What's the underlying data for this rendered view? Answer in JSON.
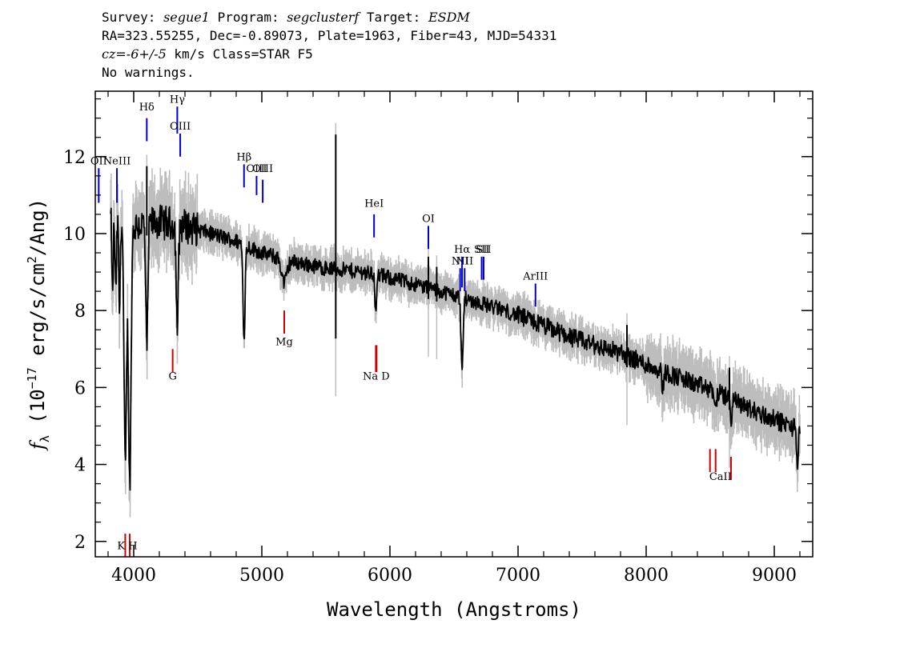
{
  "header": {
    "line1": {
      "p1": "Survey: ",
      "survey": "segue1",
      "p2": " Program: ",
      "program": "segclusterf",
      "p3": " Target: ",
      "target": "ESDM"
    },
    "line2": "RA=323.55255, Dec=-0.89073, Plate=1963, Fiber=43, MJD=54331",
    "line3": {
      "cz": "cz=-6+/-5",
      "rest": " km/s Class=STAR F5"
    },
    "line4": "No warnings."
  },
  "chart_data": {
    "type": "line",
    "xlabel": "Wavelength (Angstroms)",
    "ylabel": "f_λ (10^-17 erg/s/cm^2/Ang)",
    "ylabel_parts": {
      "f": "f",
      "sub": "λ",
      "pre": " (10",
      "sup1": "−17",
      "mid": " erg/s/cm",
      "sup2": "2",
      "post": "/Ang)"
    },
    "xlim": [
      3700,
      9300
    ],
    "ylim": [
      1.6,
      13.7
    ],
    "xticks": [
      4000,
      5000,
      6000,
      7000,
      8000,
      9000
    ],
    "yticks": [
      2,
      4,
      6,
      8,
      10,
      12
    ],
    "xtick_labels": [
      "4000",
      "5000",
      "6000",
      "7000",
      "8000",
      "9000"
    ],
    "ytick_labels": [
      "2",
      "4",
      "6",
      "8",
      "10",
      "12"
    ],
    "colors": {
      "flux": "#000000",
      "error_band": "#bdbdbd",
      "emission": "#0000cc",
      "absorption": "#cc0000"
    },
    "continuum": [
      [
        3820,
        10.4
      ],
      [
        3900,
        10.5
      ],
      [
        4000,
        10.2
      ],
      [
        4200,
        10.3
      ],
      [
        4400,
        10.2
      ],
      [
        4600,
        10.0
      ],
      [
        4800,
        9.8
      ],
      [
        5000,
        9.5
      ],
      [
        5200,
        9.3
      ],
      [
        5500,
        9.1
      ],
      [
        5800,
        9.0
      ],
      [
        6000,
        8.85
      ],
      [
        6300,
        8.6
      ],
      [
        6600,
        8.3
      ],
      [
        6900,
        8.0
      ],
      [
        7200,
        7.6
      ],
      [
        7500,
        7.2
      ],
      [
        7800,
        6.9
      ],
      [
        8000,
        6.6
      ],
      [
        8300,
        6.2
      ],
      [
        8600,
        5.8
      ],
      [
        8900,
        5.3
      ],
      [
        9200,
        4.9
      ]
    ],
    "absorption_features": [
      {
        "x": 3835,
        "depth": 2.2,
        "width": 5
      },
      {
        "x": 3860,
        "depth": 2.0,
        "width": 6
      },
      {
        "x": 3889,
        "depth": 2.5,
        "width": 6
      },
      {
        "x": 3934,
        "depth": 6.5,
        "width": 10
      },
      {
        "x": 3969,
        "depth": 6.8,
        "width": 10
      },
      {
        "x": 4102,
        "depth": 3.3,
        "width": 8
      },
      {
        "x": 4340,
        "depth": 2.7,
        "width": 8
      },
      {
        "x": 4861,
        "depth": 2.4,
        "width": 8
      },
      {
        "x": 5175,
        "depth": 0.6,
        "width": 20
      },
      {
        "x": 5890,
        "depth": 1.1,
        "width": 6
      },
      {
        "x": 6563,
        "depth": 1.9,
        "width": 8
      },
      {
        "x": 8130,
        "depth": 0.5,
        "width": 6
      },
      {
        "x": 8542,
        "depth": 0.5,
        "width": 6
      },
      {
        "x": 8662,
        "depth": 0.6,
        "width": 6
      },
      {
        "x": 9180,
        "depth": 1.0,
        "width": 6
      }
    ],
    "spikes": [
      {
        "x": 4102,
        "height": 1.5
      },
      {
        "x": 5577,
        "height": 3.5,
        "low": -1.8
      },
      {
        "x": 6300,
        "height": 0.8
      },
      {
        "x": 6365,
        "height": 0.6
      },
      {
        "x": 7850,
        "height": 0.8
      },
      {
        "x": 8650,
        "height": 0.8
      }
    ],
    "emission_lines": [
      {
        "name": "OII",
        "x": 3727,
        "y1": 10.8,
        "y2": 11.7,
        "label_y": 11.8
      },
      {
        "name": "NeIII",
        "x": 3869,
        "y1": 10.8,
        "y2": 11.7,
        "label_y": 11.8
      },
      {
        "name": "Hδ",
        "x": 4102,
        "y1": 12.4,
        "y2": 13.0,
        "label_y": 13.2
      },
      {
        "name": "Hγ",
        "x": 4340,
        "y1": 12.6,
        "y2": 13.3,
        "label_y": 13.4
      },
      {
        "name": "OIII",
        "x": 4363,
        "y1": 12.0,
        "y2": 12.6,
        "label_y": 12.7
      },
      {
        "name": "Hβ",
        "x": 4861,
        "y1": 11.2,
        "y2": 11.8,
        "label_y": 11.9
      },
      {
        "name": "OIII",
        "x": 4959,
        "y1": 11.0,
        "y2": 11.5,
        "label_y": 11.6
      },
      {
        "name": "OIII",
        "x": 5007,
        "y1": 10.8,
        "y2": 11.4,
        "label_y": 11.6
      },
      {
        "name": "HeI",
        "x": 5876,
        "y1": 9.9,
        "y2": 10.5,
        "label_y": 10.7
      },
      {
        "name": "OI",
        "x": 6300,
        "y1": 9.6,
        "y2": 10.2,
        "label_y": 10.3
      },
      {
        "name": "NII",
        "x": 6548,
        "y1": 8.5,
        "y2": 9.1,
        "label_y": 9.2
      },
      {
        "name": "Hα",
        "x": 6563,
        "y1": 8.6,
        "y2": 9.4,
        "label_y": 9.5
      },
      {
        "name": "NII",
        "x": 6583,
        "y1": 8.5,
        "y2": 9.1,
        "label_y": 9.2
      },
      {
        "name": "SII",
        "x": 6716,
        "y1": 8.8,
        "y2": 9.4,
        "label_y": 9.5
      },
      {
        "name": "SII",
        "x": 6731,
        "y1": 8.8,
        "y2": 9.4,
        "label_y": 9.5
      },
      {
        "name": "ArIII",
        "x": 7136,
        "y1": 8.1,
        "y2": 8.7,
        "label_y": 8.8
      }
    ],
    "absorption_lines": [
      {
        "name": "K",
        "x": 3934,
        "y1": 1.6,
        "y2": 2.2,
        "label_y": 1.8
      },
      {
        "name": "H",
        "x": 3969,
        "y1": 1.6,
        "y2": 2.2,
        "label_y": 1.8
      },
      {
        "name": "G",
        "x": 4304,
        "y1": 6.4,
        "y2": 7.0,
        "label_y": 6.2
      },
      {
        "name": "Mg",
        "x": 5175,
        "y1": 7.4,
        "y2": 8.0,
        "label_y": 7.1
      },
      {
        "name": "Na",
        "x": 5890,
        "y1": 6.4,
        "y2": 7.1,
        "label_y": 6.2
      },
      {
        "name": "D",
        "x": 5896,
        "y1": 6.4,
        "y2": 7.1,
        "label_y": 6.2
      },
      {
        "name": "CaII",
        "x": 8498,
        "y1": 3.8,
        "y2": 4.4,
        "label_y": 3.6
      },
      {
        "name": "CaII",
        "x": 8542,
        "y1": 3.8,
        "y2": 4.4,
        "label_y": 3.6
      },
      {
        "name": "CaII",
        "x": 8662,
        "y1": 3.6,
        "y2": 4.2,
        "label_y": 3.6
      }
    ],
    "absorption_labels": [
      {
        "text": "K H",
        "x": 3950,
        "y": 1.8
      },
      {
        "text": "G",
        "x": 4304,
        "y": 6.2
      },
      {
        "text": "Mg",
        "x": 5175,
        "y": 7.1
      },
      {
        "text": "Na  D",
        "x": 5893,
        "y": 6.2
      },
      {
        "text": "CaII",
        "x": 8580,
        "y": 3.6
      }
    ]
  }
}
